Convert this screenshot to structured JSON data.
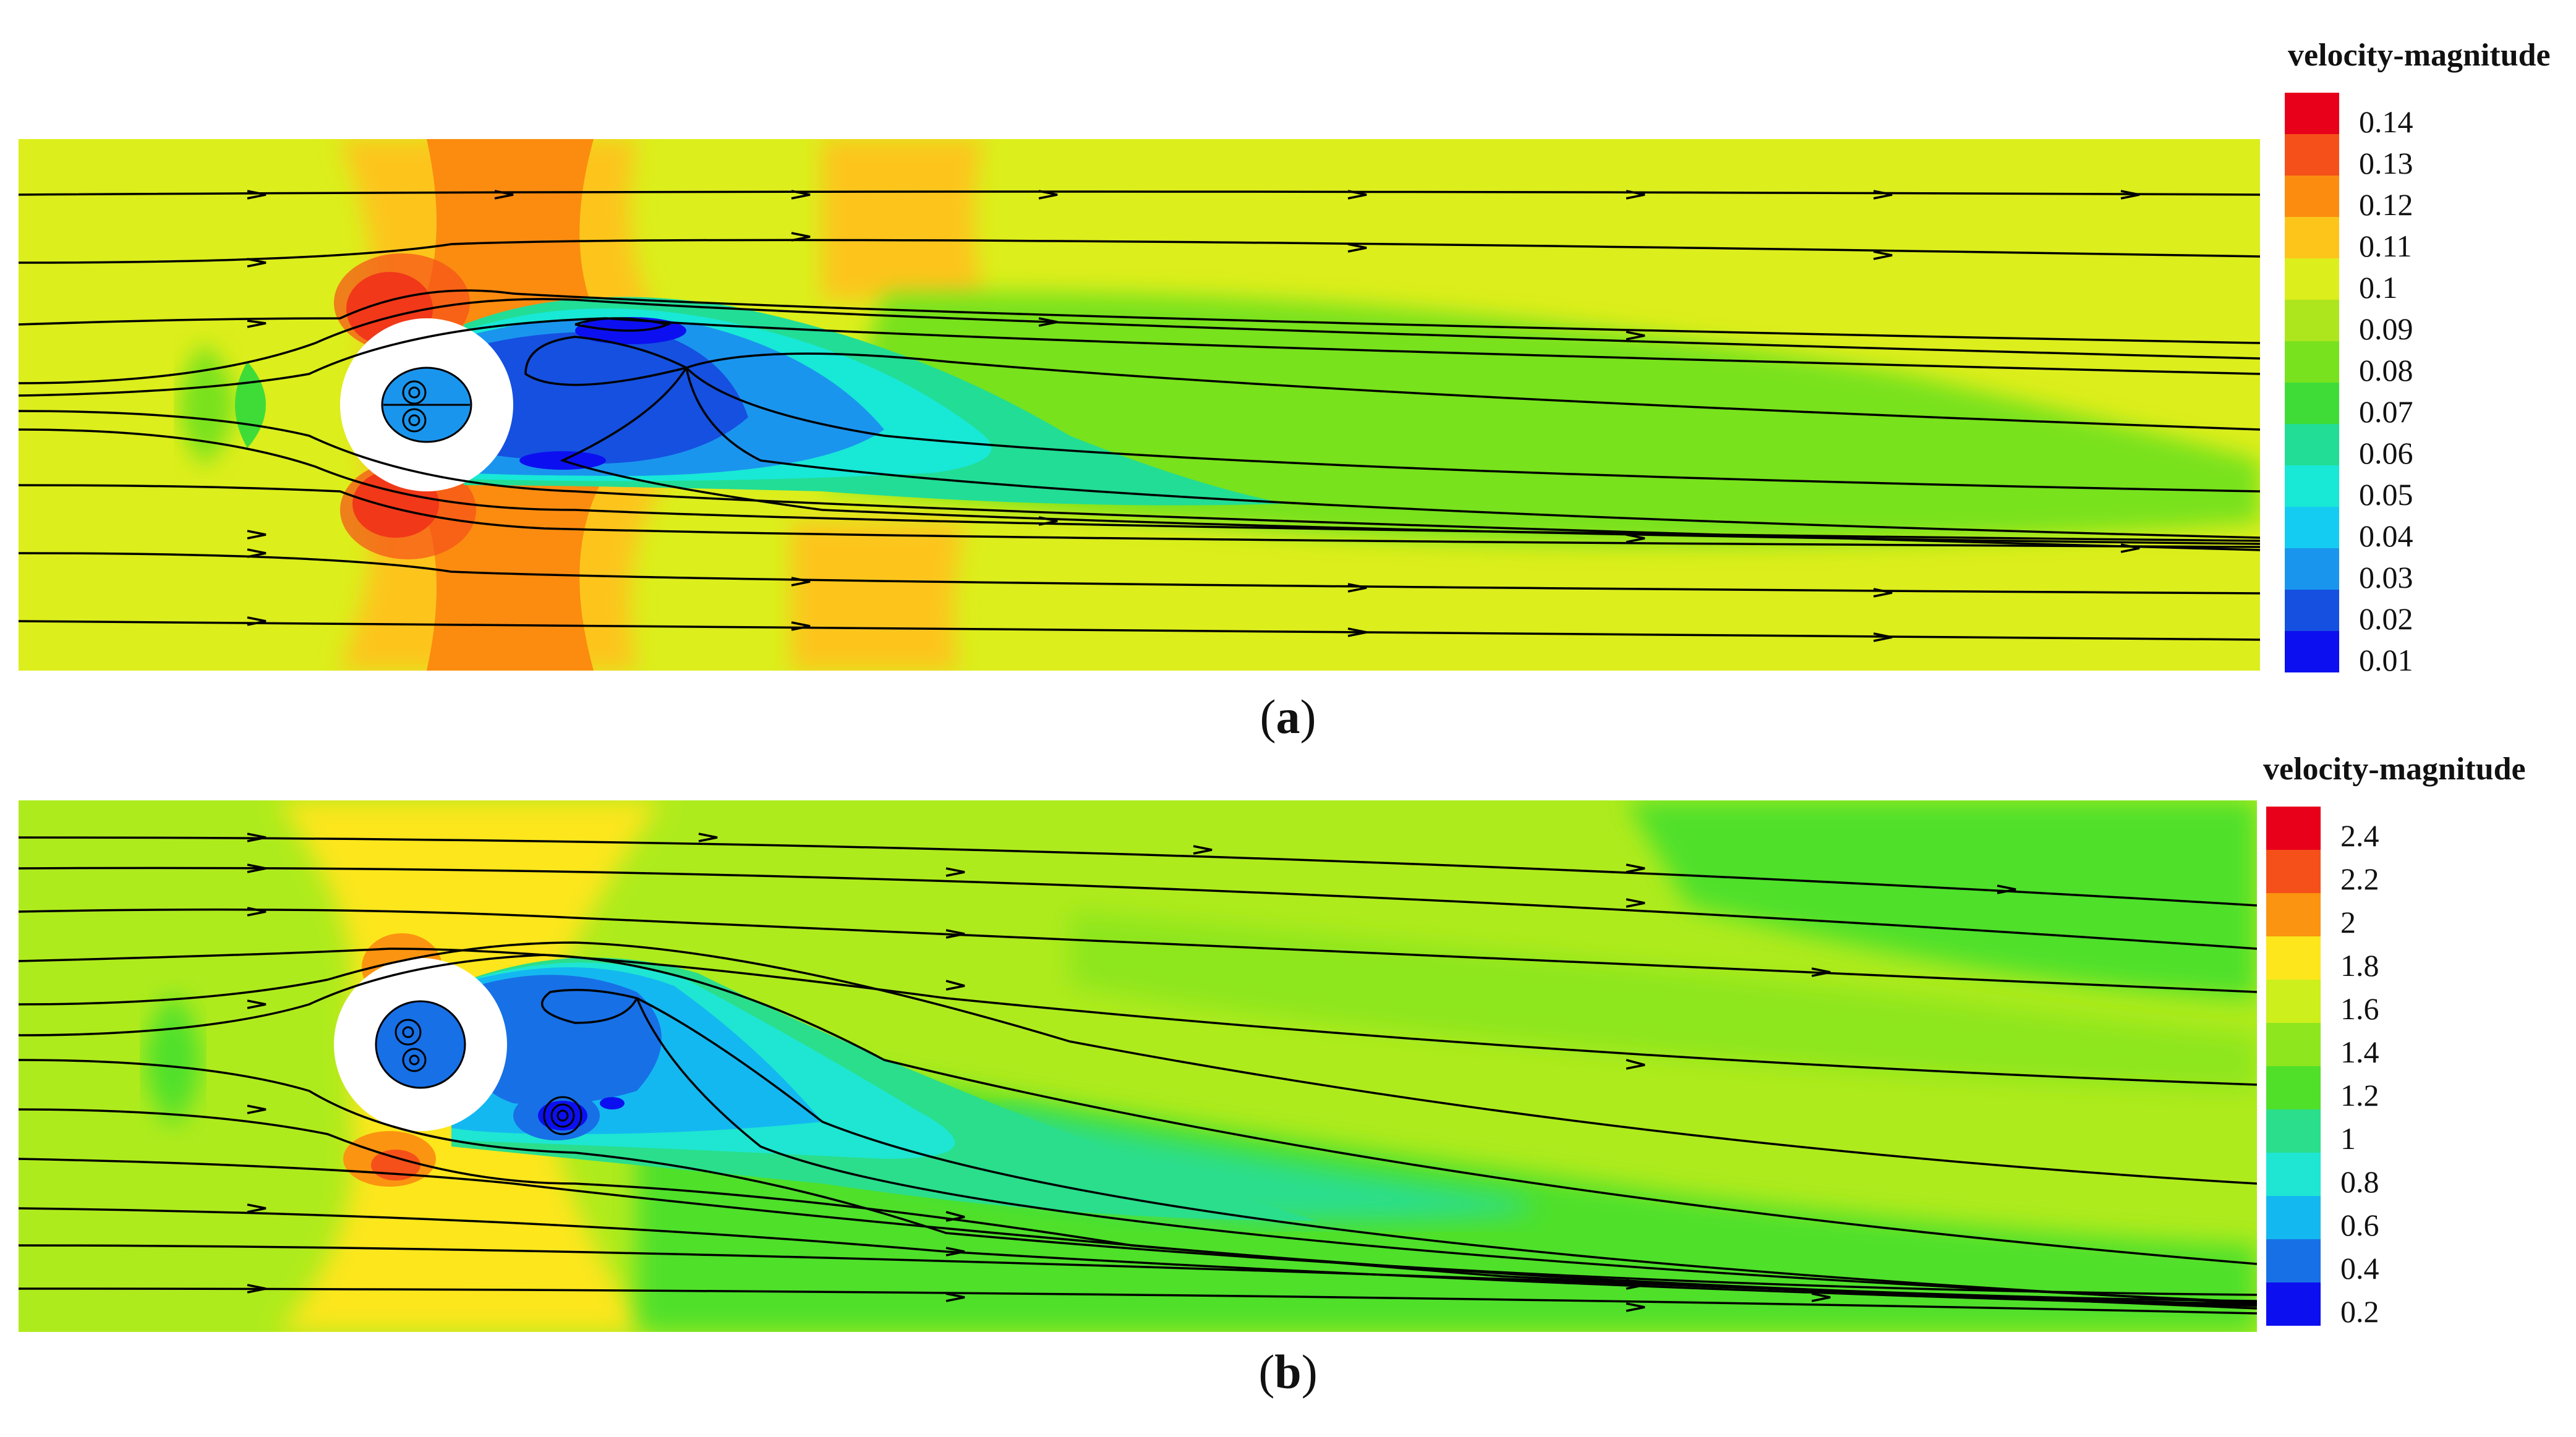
{
  "panels": [
    {
      "label": "a",
      "legend_title": "velocity-magnitude",
      "levels": [
        "0.14",
        "0.13",
        "0.12",
        "0.11",
        "0.1",
        "0.09",
        "0.08",
        "0.07",
        "0.06",
        "0.05",
        "0.04",
        "0.03",
        "0.02",
        "0.01"
      ]
    },
    {
      "label": "b",
      "legend_title": "velocity-magnitude",
      "levels": [
        "2.4",
        "2.2",
        "2",
        "1.8",
        "1.6",
        "1.4",
        "1.2",
        "1",
        "0.8",
        "0.6",
        "0.4",
        "0.2"
      ]
    }
  ],
  "colors": {
    "scale_a": [
      "#e8001a",
      "#f5501a",
      "#fb8c10",
      "#fdc51a",
      "#dcee1c",
      "#aee61e",
      "#78e21f",
      "#3fdc38",
      "#22dd95",
      "#18e8d6",
      "#14ccf2",
      "#1a95ee",
      "#1550e0",
      "#0c10f0"
    ],
    "scale_b": [
      "#e8001a",
      "#f5501a",
      "#fb9410",
      "#fde61c",
      "#cdef1c",
      "#8ee61e",
      "#50e02a",
      "#2ade8c",
      "#1ee6d2",
      "#14b8f0",
      "#1770e6",
      "#0c10f0"
    ],
    "streamline": "#000000",
    "cylinder": "#ffffff"
  }
}
